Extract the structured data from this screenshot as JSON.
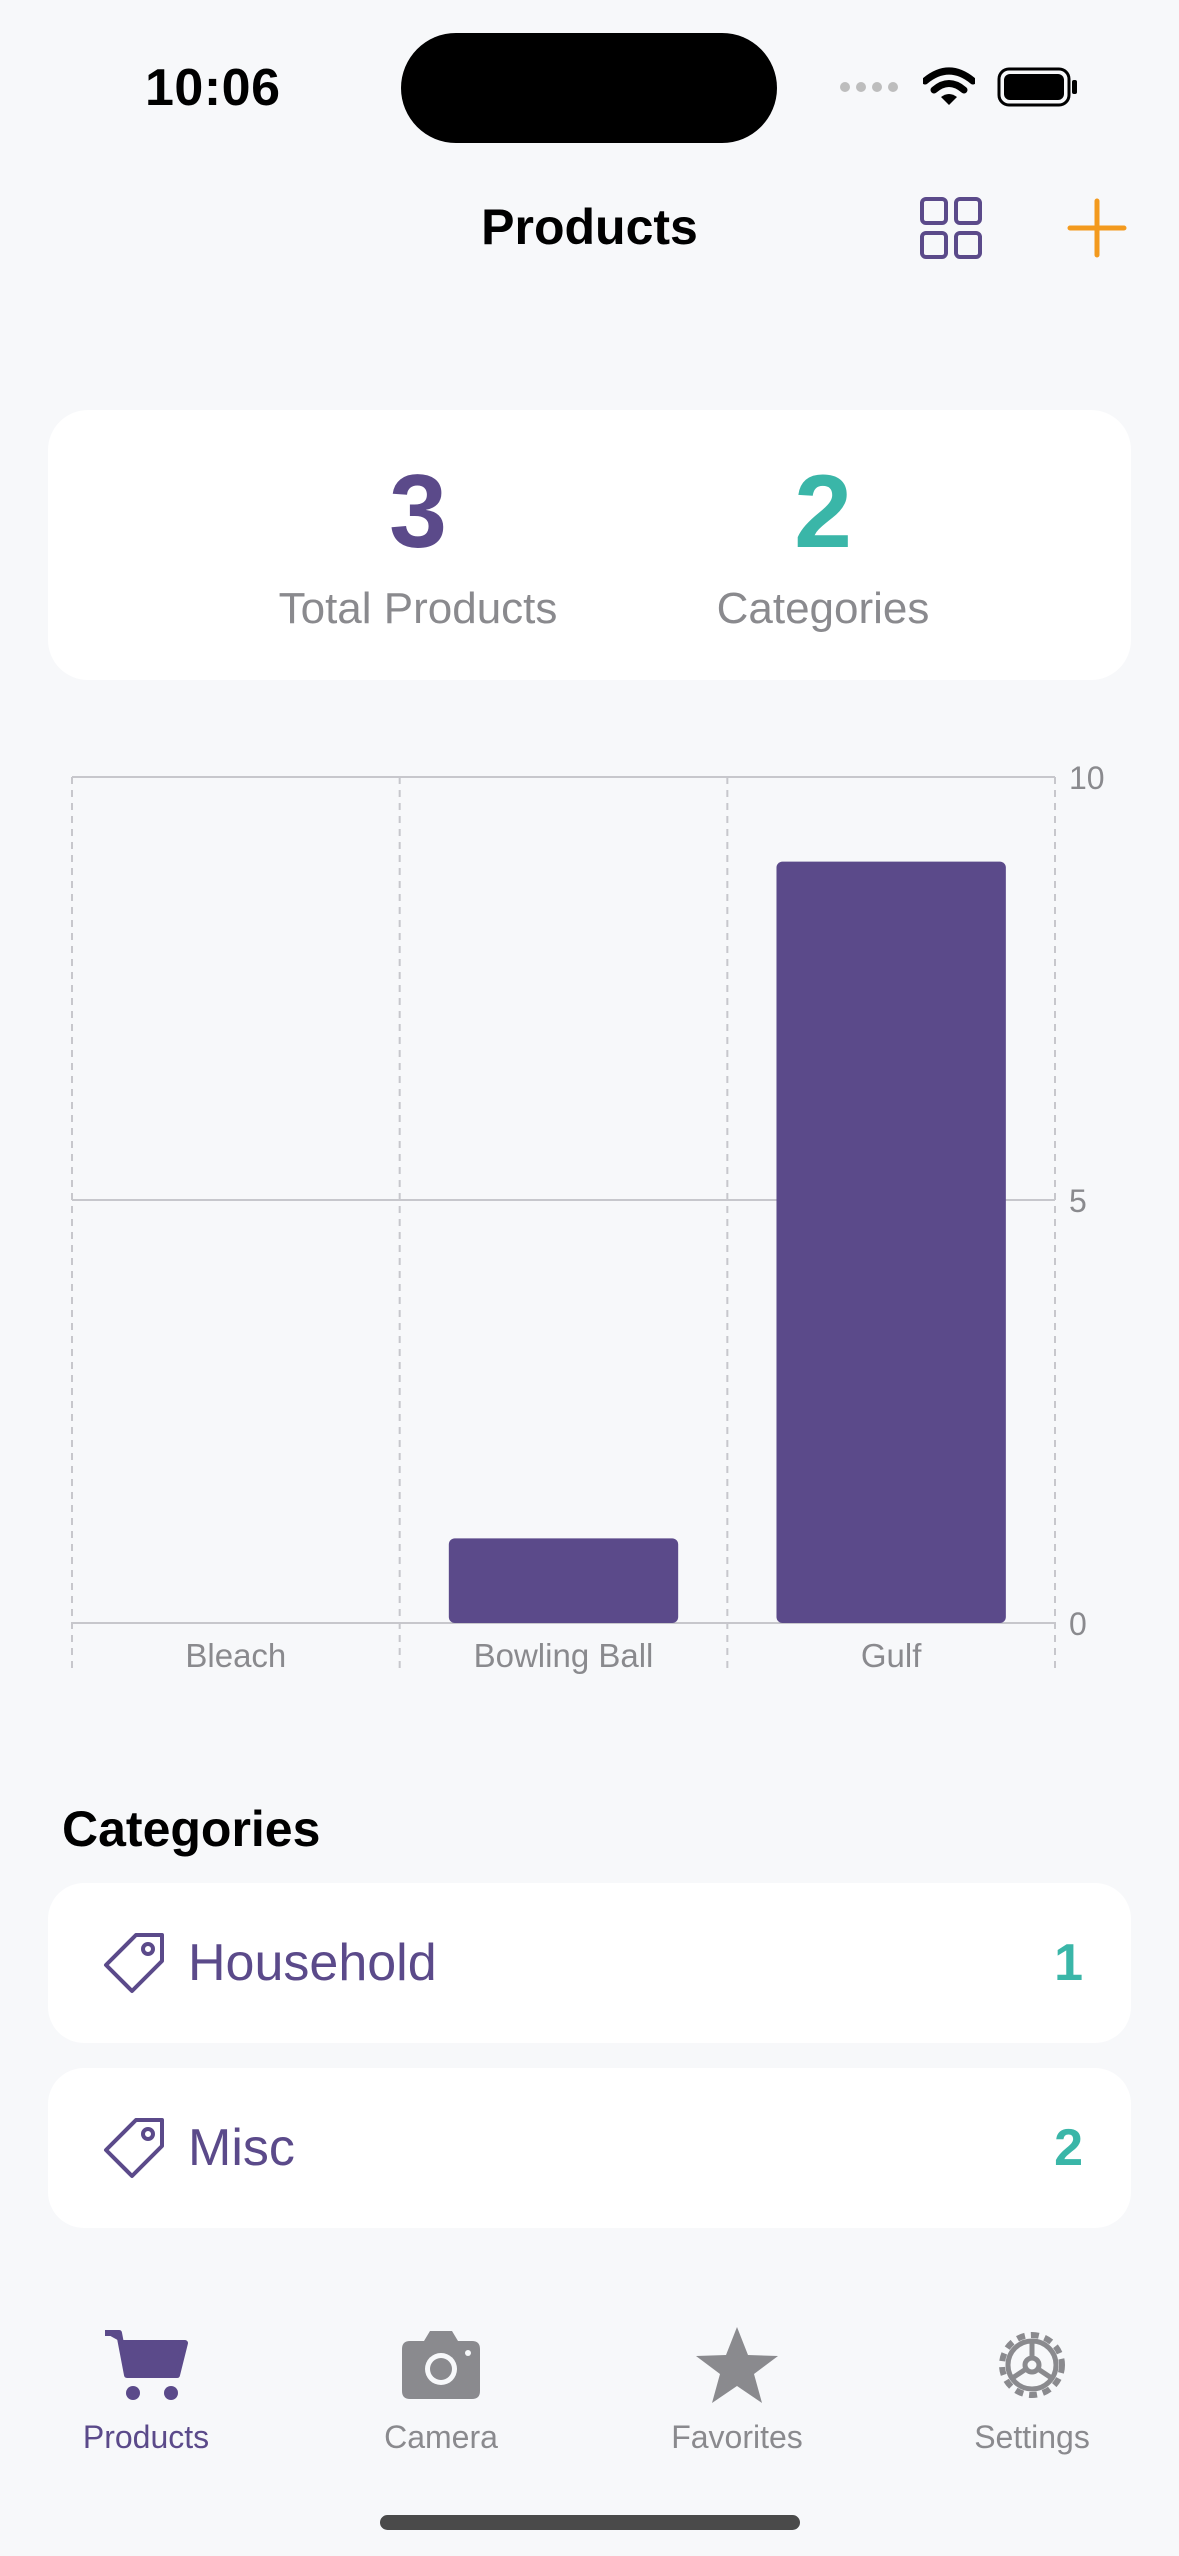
{
  "status_bar": {
    "time": "10:06"
  },
  "nav": {
    "title": "Products"
  },
  "summary": {
    "total_products": {
      "value": "3",
      "label": "Total Products",
      "color": "#5B4A8A"
    },
    "categories": {
      "value": "2",
      "label": "Categories",
      "color": "#3AB6A8"
    }
  },
  "chart_data": {
    "type": "bar",
    "categories": [
      "Bleach",
      "Bowling Ball",
      "Gulf"
    ],
    "values": [
      0,
      1,
      9
    ],
    "ylim": [
      0,
      10
    ],
    "yticks": [
      "0",
      "5",
      "10"
    ],
    "grid": true,
    "bar_color": "#5B4A8A"
  },
  "categories_section": {
    "header": "Categories",
    "items": [
      {
        "name": "Household",
        "count": "1",
        "icon": "tag-icon"
      },
      {
        "name": "Misc",
        "count": "2",
        "icon": "tag-icon"
      }
    ]
  },
  "tab_bar": {
    "items": [
      {
        "label": "Products",
        "icon": "cart-icon",
        "active": true
      },
      {
        "label": "Camera",
        "icon": "camera-icon",
        "active": false
      },
      {
        "label": "Favorites",
        "icon": "star-icon",
        "active": false
      },
      {
        "label": "Settings",
        "icon": "gear-icon",
        "active": false
      }
    ]
  },
  "colors": {
    "accent": "#5B4A8A",
    "teal": "#3AB6A8",
    "orange": "#F39A1E",
    "inactive": "#8A8A8E"
  }
}
